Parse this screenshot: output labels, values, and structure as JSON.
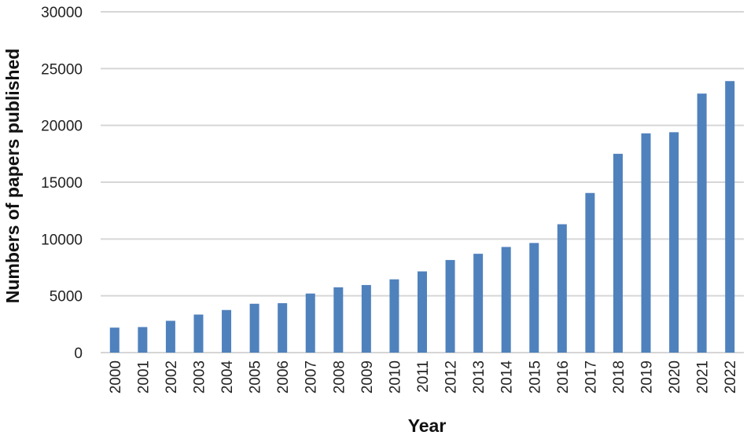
{
  "chart_data": {
    "type": "bar",
    "title": "",
    "xlabel": "Year",
    "ylabel": "Numbers of papers published",
    "categories": [
      "2000",
      "2001",
      "2002",
      "2003",
      "2004",
      "2005",
      "2006",
      "2007",
      "2008",
      "2009",
      "2010",
      "2011",
      "2012",
      "2013",
      "2014",
      "2015",
      "2016",
      "2017",
      "2018",
      "2019",
      "2020",
      "2021",
      "2022"
    ],
    "values": [
      2200,
      2250,
      2800,
      3350,
      3750,
      4300,
      4350,
      5200,
      5750,
      5950,
      6450,
      7150,
      8150,
      8700,
      9300,
      9650,
      11300,
      14050,
      17500,
      19300,
      19400,
      22800,
      23900
    ],
    "ylim": [
      0,
      30000
    ],
    "yticks": [
      "0",
      "5000",
      "10000",
      "15000",
      "20000",
      "25000",
      "30000"
    ],
    "grid": true,
    "legend": "none",
    "colors": {
      "bar": "#4f81bd",
      "grid": "#d6d6d6"
    }
  }
}
